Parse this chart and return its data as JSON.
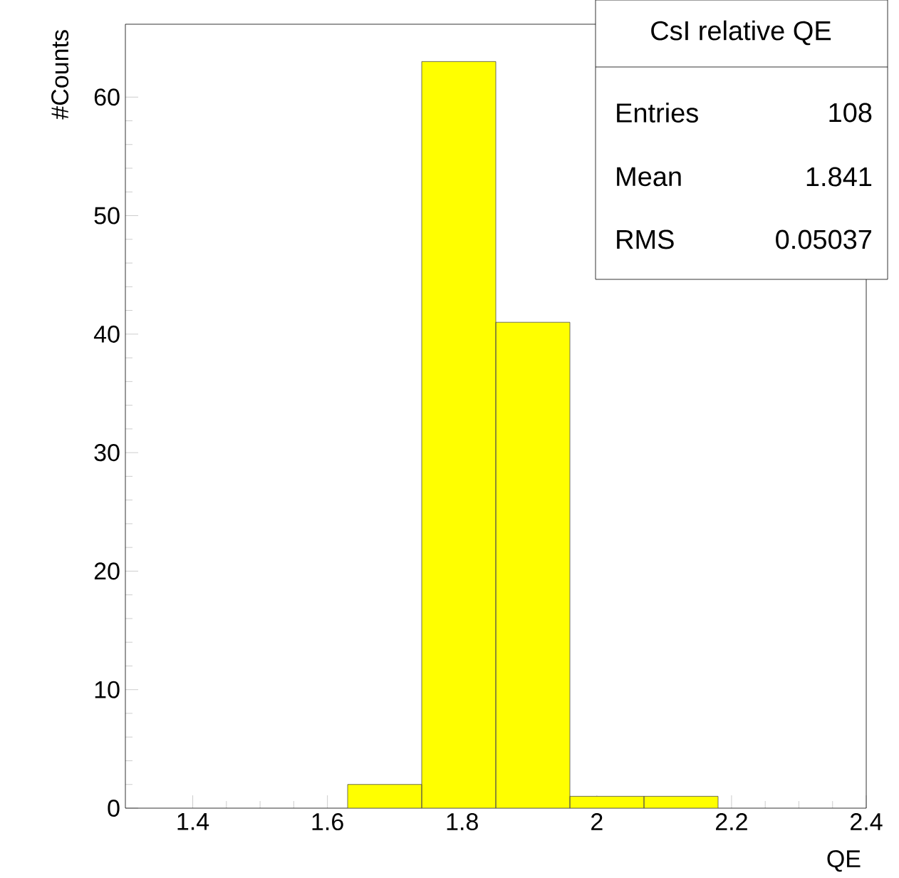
{
  "chart_data": {
    "type": "histogram",
    "title": "CsI relative QE",
    "xlabel": "QE",
    "ylabel": "#Counts",
    "bins": [
      1.63,
      1.74,
      1.85,
      1.96,
      2.07,
      2.18
    ],
    "values": [
      2,
      63,
      41,
      1,
      1
    ],
    "color": "#ffff00",
    "xlim": [
      1.3,
      2.4
    ],
    "ylim": [
      0,
      66.15
    ],
    "xticks": [
      1.4,
      1.6,
      1.8,
      2,
      2.2,
      2.4
    ],
    "yticks": [
      0,
      10,
      20,
      30,
      40,
      50,
      60
    ],
    "annotations": [
      "Entries",
      "108",
      "Mean",
      "1.841",
      "RMS",
      "0.05037"
    ]
  }
}
